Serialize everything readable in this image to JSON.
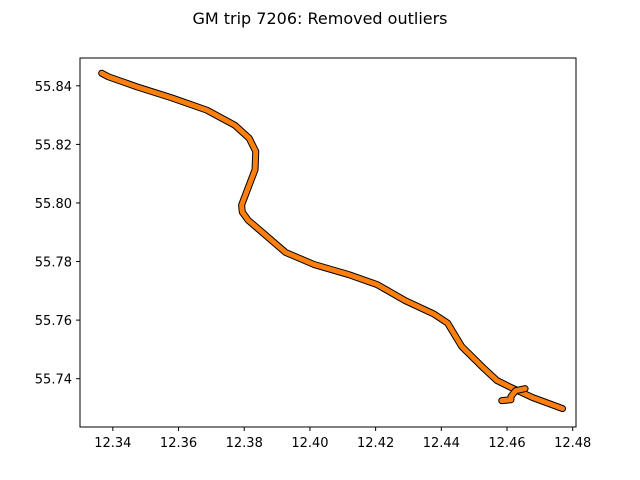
{
  "chart_data": {
    "type": "line",
    "title": "GM trip 7206: Removed outliers",
    "xlabel": "",
    "ylabel": "",
    "xlim": [
      12.33,
      12.481
    ],
    "ylim": [
      55.7235,
      55.8495
    ],
    "grid": false,
    "x_ticks": [
      {
        "value": 12.34,
        "label": "12.34"
      },
      {
        "value": 12.36,
        "label": "12.36"
      },
      {
        "value": 12.38,
        "label": "12.38"
      },
      {
        "value": 12.4,
        "label": "12.40"
      },
      {
        "value": 12.42,
        "label": "12.42"
      },
      {
        "value": 12.44,
        "label": "12.44"
      },
      {
        "value": 12.46,
        "label": "12.46"
      },
      {
        "value": 12.48,
        "label": "12.48"
      }
    ],
    "y_ticks": [
      {
        "value": 55.74,
        "label": "55.74"
      },
      {
        "value": 55.76,
        "label": "55.76"
      },
      {
        "value": 55.78,
        "label": "55.78"
      },
      {
        "value": 55.8,
        "label": "55.80"
      },
      {
        "value": 55.82,
        "label": "55.82"
      },
      {
        "value": 55.84,
        "label": "55.84"
      }
    ],
    "series": [
      {
        "color": "#000000",
        "x": [
          12.3366,
          12.3386,
          12.3472,
          12.3579,
          12.3686,
          12.3772,
          12.3815,
          12.3835,
          12.3833,
          12.3812,
          12.3792,
          12.3794,
          12.3812,
          12.3862,
          12.3926,
          12.4012,
          12.4119,
          12.4205,
          12.4291,
          12.4377,
          12.4419,
          12.4462,
          12.4526,
          12.4569,
          12.4612,
          12.4677,
          12.4769
        ],
        "y": [
          55.8443,
          55.8431,
          55.8397,
          55.8359,
          55.8317,
          55.8265,
          55.8221,
          55.8176,
          55.8114,
          55.8052,
          55.7993,
          55.7969,
          55.7941,
          55.7893,
          55.7831,
          55.779,
          55.7755,
          55.7721,
          55.7666,
          55.7621,
          55.759,
          55.751,
          55.7439,
          55.7394,
          55.737,
          55.7336,
          55.7298
        ]
      },
      {
        "color": "#ff7f0e",
        "x": [
          12.3366,
          12.3386,
          12.3472,
          12.3579,
          12.3686,
          12.3772,
          12.3815,
          12.3835,
          12.3833,
          12.3812,
          12.3792,
          12.3794,
          12.3812,
          12.3862,
          12.3926,
          12.4012,
          12.4119,
          12.4205,
          12.4291,
          12.4377,
          12.4419,
          12.4462,
          12.4526,
          12.4569,
          12.4612,
          12.4677,
          12.4769
        ],
        "y": [
          55.8443,
          55.8431,
          55.8397,
          55.8359,
          55.8317,
          55.8265,
          55.8221,
          55.8176,
          55.8114,
          55.8052,
          55.7993,
          55.7969,
          55.7941,
          55.7893,
          55.7831,
          55.779,
          55.7755,
          55.7721,
          55.7666,
          55.7621,
          55.759,
          55.751,
          55.7439,
          55.7394,
          55.737,
          55.7336,
          55.7298
        ]
      },
      {
        "color": "#000000",
        "x": [
          12.4584,
          12.4612,
          12.4612,
          12.4626,
          12.4655
        ],
        "y": [
          55.7325,
          55.7328,
          55.7339,
          55.7359,
          55.7366
        ]
      },
      {
        "color": "#ff7f0e",
        "x": [
          12.4584,
          12.4612,
          12.4612,
          12.4626,
          12.4655
        ],
        "y": [
          55.7325,
          55.7328,
          55.7339,
          55.7359,
          55.7366
        ]
      }
    ]
  }
}
